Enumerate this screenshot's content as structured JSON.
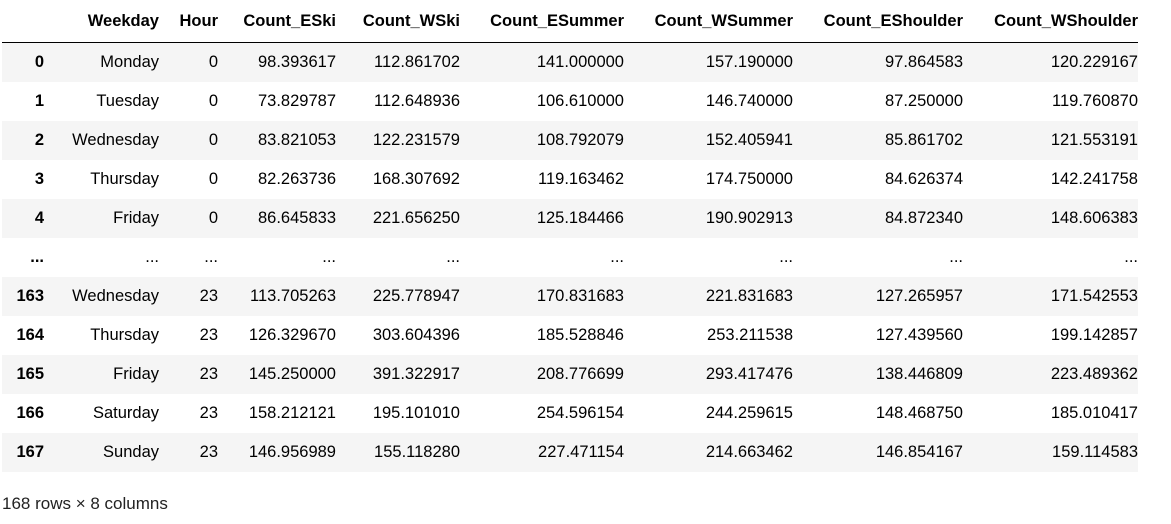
{
  "table": {
    "columns": [
      "",
      "Weekday",
      "Hour",
      "Count_ESki",
      "Count_WSki",
      "Count_ESummer",
      "Count_WSummer",
      "Count_EShoulder",
      "Count_WShoulder"
    ],
    "rows": [
      [
        "0",
        "Monday",
        "0",
        "98.393617",
        "112.861702",
        "141.000000",
        "157.190000",
        "97.864583",
        "120.229167"
      ],
      [
        "1",
        "Tuesday",
        "0",
        "73.829787",
        "112.648936",
        "106.610000",
        "146.740000",
        "87.250000",
        "119.760870"
      ],
      [
        "2",
        "Wednesday",
        "0",
        "83.821053",
        "122.231579",
        "108.792079",
        "152.405941",
        "85.861702",
        "121.553191"
      ],
      [
        "3",
        "Thursday",
        "0",
        "82.263736",
        "168.307692",
        "119.163462",
        "174.750000",
        "84.626374",
        "142.241758"
      ],
      [
        "4",
        "Friday",
        "0",
        "86.645833",
        "221.656250",
        "125.184466",
        "190.902913",
        "84.872340",
        "148.606383"
      ],
      [
        "...",
        "...",
        "...",
        "...",
        "...",
        "...",
        "...",
        "...",
        "..."
      ],
      [
        "163",
        "Wednesday",
        "23",
        "113.705263",
        "225.778947",
        "170.831683",
        "221.831683",
        "127.265957",
        "171.542553"
      ],
      [
        "164",
        "Thursday",
        "23",
        "126.329670",
        "303.604396",
        "185.528846",
        "253.211538",
        "127.439560",
        "199.142857"
      ],
      [
        "165",
        "Friday",
        "23",
        "145.250000",
        "391.322917",
        "208.776699",
        "293.417476",
        "138.446809",
        "223.489362"
      ],
      [
        "166",
        "Saturday",
        "23",
        "158.212121",
        "195.101010",
        "254.596154",
        "244.259615",
        "148.468750",
        "185.010417"
      ],
      [
        "167",
        "Sunday",
        "23",
        "146.956989",
        "155.118280",
        "227.471154",
        "214.663462",
        "146.854167",
        "159.114583"
      ]
    ]
  },
  "footer": "168 rows × 8 columns"
}
